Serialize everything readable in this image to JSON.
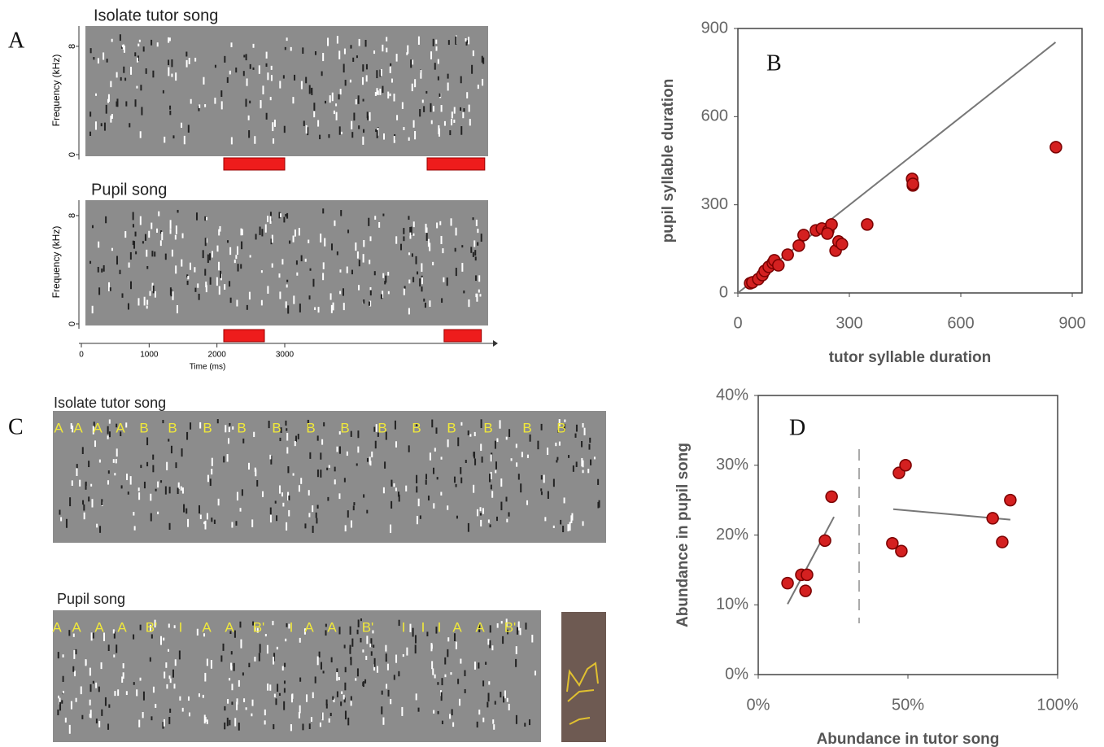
{
  "panel_a": {
    "label": "A",
    "y_label": "Frequency (kHz)",
    "ylim": [
      0,
      9.5
    ],
    "yticks": [
      0,
      8
    ],
    "x_label": "Time (ms)",
    "xlim": [
      0,
      6000
    ],
    "xticks": [
      0,
      1000,
      2000,
      3000
    ],
    "songs": [
      {
        "title": "Isolate tutor song",
        "segments": [
          [
            2100,
            3000
          ],
          [
            5100,
            5950
          ]
        ]
      },
      {
        "title": "Pupil song",
        "segments": [
          [
            2100,
            2700
          ],
          [
            5350,
            5900
          ]
        ]
      }
    ]
  },
  "panel_c": {
    "label": "C",
    "songs": [
      {
        "title": "Isolate tutor song",
        "syllables": [
          "A",
          "A",
          "A",
          "A",
          "B",
          "B",
          "B",
          "B",
          "B",
          "B",
          "B",
          "B",
          "B",
          "B",
          "B",
          "B",
          "B"
        ]
      },
      {
        "title": "Pupil song",
        "syllables": [
          "A",
          "A",
          "A",
          "A",
          "B'",
          "I",
          "A",
          "A",
          "B'",
          "I",
          "A",
          "A",
          "B'",
          "I",
          "I",
          "I",
          "A",
          "A",
          "B'"
        ]
      }
    ]
  },
  "chart_data": [
    {
      "type": "scatter",
      "annotation": "B",
      "x_label": "tutor syllable duration",
      "y_label": "pupil syllable duration",
      "xlim": [
        0,
        900
      ],
      "ylim": [
        0,
        900
      ],
      "xticks": [
        0,
        300,
        600,
        900
      ],
      "yticks": [
        0,
        300,
        600,
        900
      ],
      "color": "#d42020",
      "x": [
        33,
        39,
        55,
        66,
        72,
        83,
        94,
        98,
        109,
        134,
        164,
        177,
        210,
        226,
        243,
        252,
        241,
        263,
        271,
        280,
        348,
        469,
        471,
        471,
        856
      ],
      "values": [
        33,
        36,
        47,
        61,
        75,
        89,
        102,
        111,
        94,
        130,
        161,
        197,
        213,
        219,
        211,
        233,
        202,
        144,
        175,
        166,
        233,
        388,
        366,
        371,
        496
      ],
      "trend_lines": [
        {
          "x": [
            0,
            855
          ],
          "y": [
            0,
            853
          ]
        }
      ]
    },
    {
      "type": "scatter",
      "annotation": "D",
      "x_label": "Abundance in tutor song",
      "y_label": "Abundance in pupil song",
      "xlim": [
        0,
        100
      ],
      "ylim": [
        0,
        40
      ],
      "xticks": [
        {
          "value": 0,
          "label": "0%"
        },
        {
          "value": 50,
          "label": "50%"
        },
        {
          "value": 100,
          "label": "100%"
        }
      ],
      "yticks": [
        {
          "value": 0,
          "label": "0%"
        },
        {
          "value": 10,
          "label": "10%"
        },
        {
          "value": 20,
          "label": "20%"
        },
        {
          "value": 30,
          "label": "30%"
        },
        {
          "value": 40,
          "label": "40%"
        }
      ],
      "color": "#d42020",
      "x": [
        9.8,
        14.4,
        16.3,
        15.8,
        22.3,
        24.5,
        44.8,
        47.8,
        47.0,
        49.2,
        78.3,
        81.5,
        84.2
      ],
      "values": [
        13.1,
        14.3,
        14.3,
        12.0,
        19.2,
        25.5,
        18.8,
        17.7,
        28.9,
        30.0,
        22.4,
        19.0,
        25.0
      ],
      "trend_lines": [
        {
          "x": [
            9.8,
            25.3
          ],
          "y": [
            10.1,
            22.6
          ]
        },
        {
          "x": [
            45.1,
            84.2
          ],
          "y": [
            23.7,
            22.2
          ]
        }
      ]
    }
  ]
}
